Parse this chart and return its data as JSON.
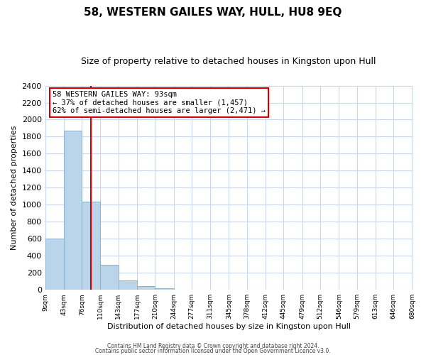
{
  "title": "58, WESTERN GAILES WAY, HULL, HU8 9EQ",
  "subtitle": "Size of property relative to detached houses in Kingston upon Hull",
  "xlabel": "Distribution of detached houses by size in Kingston upon Hull",
  "ylabel": "Number of detached properties",
  "bar_edges": [
    9,
    43,
    76,
    110,
    143,
    177,
    210,
    244,
    277,
    311,
    345,
    378,
    412,
    445,
    479,
    512,
    546,
    579,
    613,
    646,
    680
  ],
  "bar_heights": [
    600,
    1870,
    1035,
    290,
    110,
    45,
    20,
    0,
    0,
    0,
    0,
    0,
    0,
    0,
    0,
    0,
    0,
    0,
    0,
    0
  ],
  "bar_color": "#bad4ea",
  "bar_edge_color": "#8ab4d4",
  "vline_x": 93,
  "vline_color": "#cc0000",
  "annotation_title": "58 WESTERN GAILES WAY: 93sqm",
  "annotation_line1": "← 37% of detached houses are smaller (1,457)",
  "annotation_line2": "62% of semi-detached houses are larger (2,471) →",
  "annotation_box_edge": "#cc0000",
  "ylim": [
    0,
    2400
  ],
  "tick_labels": [
    "9sqm",
    "43sqm",
    "76sqm",
    "110sqm",
    "143sqm",
    "177sqm",
    "210sqm",
    "244sqm",
    "277sqm",
    "311sqm",
    "345sqm",
    "378sqm",
    "412sqm",
    "445sqm",
    "479sqm",
    "512sqm",
    "546sqm",
    "579sqm",
    "613sqm",
    "646sqm",
    "680sqm"
  ],
  "footer1": "Contains HM Land Registry data © Crown copyright and database right 2024.",
  "footer2": "Contains public sector information licensed under the Open Government Licence v3.0.",
  "bg_color": "#ffffff",
  "grid_color": "#c8d8e8",
  "title_fontsize": 11,
  "subtitle_fontsize": 9,
  "ylabel_fontsize": 8,
  "xlabel_fontsize": 8,
  "ytick_fontsize": 8,
  "xtick_fontsize": 6.5
}
